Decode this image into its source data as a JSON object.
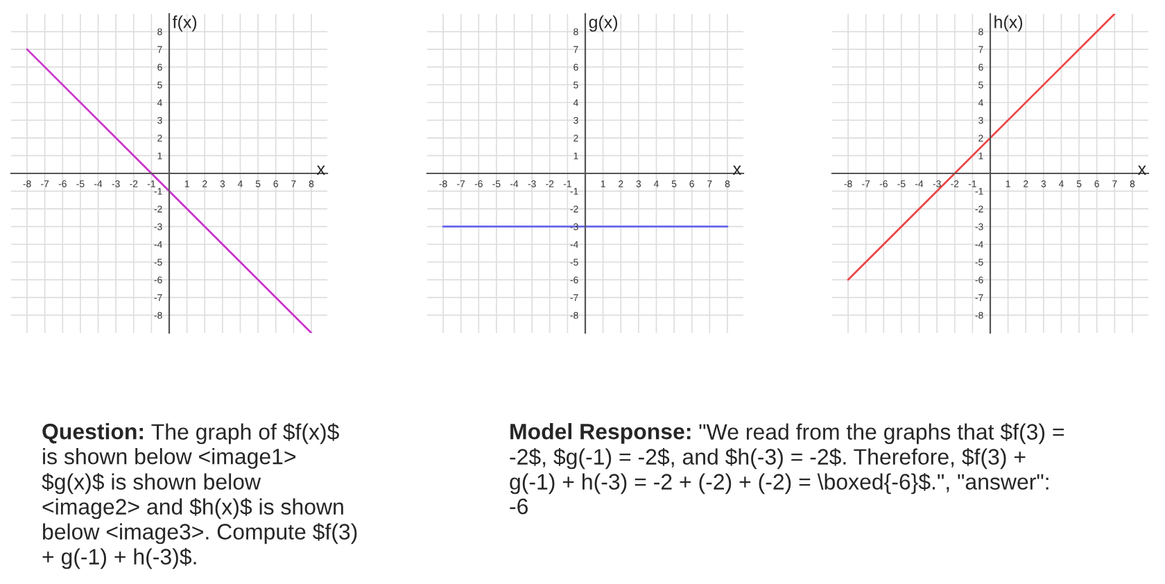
{
  "chart_data": [
    {
      "type": "line",
      "xlabel": "x",
      "ylabel": "f(x)",
      "grid": true,
      "xlim": [
        -8.9,
        8.9
      ],
      "ylim": [
        -9,
        9
      ],
      "xticks": [
        -8,
        -7,
        -6,
        -5,
        -4,
        -3,
        -2,
        -1,
        1,
        2,
        3,
        4,
        5,
        6,
        7,
        8
      ],
      "yticks": [
        -8,
        -7,
        -6,
        -5,
        -4,
        -3,
        -2,
        -1,
        1,
        2,
        3,
        4,
        5,
        6,
        7,
        8
      ],
      "series": [
        {
          "color": "#cc33cc",
          "x": [
            -8,
            8
          ],
          "values": [
            7,
            -9
          ]
        }
      ]
    },
    {
      "type": "line",
      "xlabel": "x",
      "ylabel": "g(x)",
      "grid": true,
      "xlim": [
        -8.9,
        8.9
      ],
      "ylim": [
        -9,
        9
      ],
      "xticks": [
        -8,
        -7,
        -6,
        -5,
        -4,
        -3,
        -2,
        -1,
        1,
        2,
        3,
        4,
        5,
        6,
        7,
        8
      ],
      "yticks": [
        -8,
        -7,
        -6,
        -5,
        -4,
        -3,
        -2,
        -1,
        1,
        2,
        3,
        4,
        5,
        6,
        7,
        8
      ],
      "series": [
        {
          "color": "#6666ee",
          "x": [
            -8,
            8
          ],
          "values": [
            -3,
            -3
          ]
        }
      ]
    },
    {
      "type": "line",
      "xlabel": "x",
      "ylabel": "h(x)",
      "grid": true,
      "xlim": [
        -8.9,
        8.9
      ],
      "ylim": [
        -9,
        9
      ],
      "xticks": [
        -8,
        -7,
        -6,
        -5,
        -4,
        -3,
        -2,
        -1,
        1,
        2,
        3,
        4,
        5,
        6,
        7,
        8
      ],
      "yticks": [
        -8,
        -7,
        -6,
        -5,
        -4,
        -3,
        -2,
        -1,
        1,
        2,
        3,
        4,
        5,
        6,
        7,
        8
      ],
      "series": [
        {
          "color": "#ee4444",
          "x": [
            -8,
            7
          ],
          "values": [
            -6,
            9
          ]
        }
      ]
    },
    {
      "type": "other",
      "annotations": [
        "Question:",
        "The graph of $f(x)$\nis shown below <image1>\n$g(x)$ is shown below\n<image2> and $h(x)$ is shown\nbelow <image3>. Compute $f(3)\n+ g(-1) + h(-3)$.",
        "Model Response:",
        "\"We read from the graphs that $f(3) =\n-2$, $g(-1) = -2$, and $h(-3) = -2$. Therefore, $f(3) +\ng(-1) + h(-3) = -2 + (-2) + (-2) = \\boxed{-6}$.\", \"answer\":\n-6"
      ]
    }
  ]
}
